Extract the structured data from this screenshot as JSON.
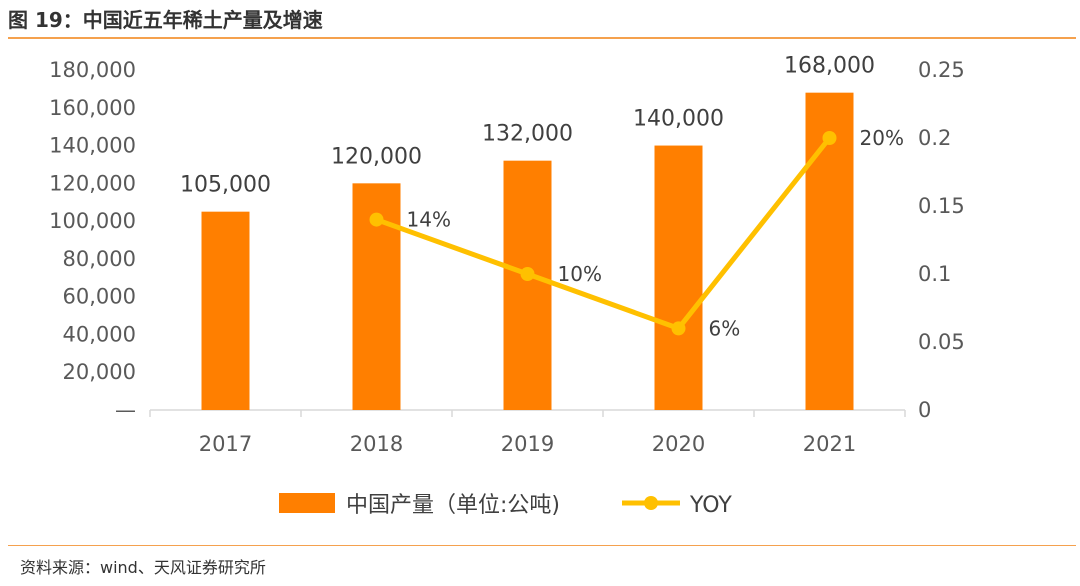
{
  "header": {
    "title": "图 19：中国近五年稀土产量及增速"
  },
  "footer": {
    "source": "资料来源：wind、天风证券研究所"
  },
  "colors": {
    "bar": "#ff7f00",
    "line": "#ffc000",
    "rule": "#f5a14e",
    "axis": "#d9d9d9"
  },
  "chart_data": {
    "type": "bar+line",
    "title": "中国近五年稀土产量及增速",
    "categories": [
      "2017",
      "2018",
      "2019",
      "2020",
      "2021"
    ],
    "series": [
      {
        "name": "中国产量（单位:公吨)",
        "type": "bar",
        "axis": "left",
        "values": [
          105000,
          120000,
          132000,
          140000,
          168000
        ],
        "labels": [
          "105,000",
          "120,000",
          "132,000",
          "140,000",
          "168,000"
        ]
      },
      {
        "name": "YOY",
        "type": "line",
        "axis": "right",
        "values": [
          null,
          0.14,
          0.1,
          0.06,
          0.2
        ],
        "labels": [
          "",
          "14%",
          "10%",
          "6%",
          "20%"
        ]
      }
    ],
    "y_left": {
      "range": [
        0,
        180000
      ],
      "ticks": [
        0,
        20000,
        40000,
        60000,
        80000,
        100000,
        120000,
        140000,
        160000,
        180000
      ],
      "tick_labels": [
        "—",
        "20,000",
        "40,000",
        "60,000",
        "80,000",
        "100,000",
        "120,000",
        "140,000",
        "160,000",
        "180,000"
      ]
    },
    "y_right": {
      "range": [
        0,
        0.25
      ],
      "ticks": [
        0,
        0.05,
        0.1,
        0.15,
        0.2,
        0.25
      ],
      "tick_labels": [
        "0",
        "0.05",
        "0.1",
        "0.15",
        "0.2",
        "0.25"
      ]
    },
    "legend": {
      "position": "bottom",
      "entries": [
        "中国产量（单位:公吨)",
        "YOY"
      ]
    },
    "grid": false
  }
}
